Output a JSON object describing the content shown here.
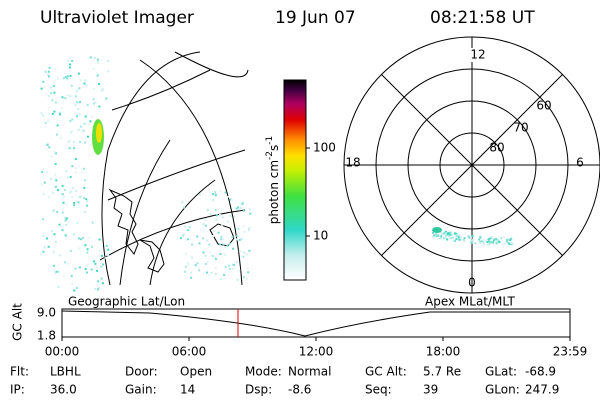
{
  "header": {
    "title": "Ultraviolet Imager",
    "date": "19 Jun 07",
    "time": "08:21:58 UT"
  },
  "colorbar": {
    "label": [
      "photon cm",
      "-2",
      "s",
      "-1"
    ],
    "ticks": [
      "100",
      "10"
    ]
  },
  "polar": {
    "mlt": [
      "12",
      "18",
      "6",
      "0"
    ],
    "mlat": [
      "60",
      "70",
      "80"
    ]
  },
  "timeline": {
    "left_title": "Geographic Lat/Lon",
    "right_title": "Apex MLat/MLT",
    "axis_label": "GC Alt",
    "yticks": [
      "9.0",
      "1.8"
    ],
    "xticks": [
      "00:00",
      "06:00",
      "12:00",
      "18:00",
      "23:59"
    ]
  },
  "footer": [
    {
      "label": "Flt:",
      "value": "LBHL"
    },
    {
      "label": "IP:",
      "value": "36.0"
    },
    {
      "label": "Door:",
      "value": "Open"
    },
    {
      "label": "Gain:",
      "value": "14"
    },
    {
      "label": "Mode:",
      "value": "Normal"
    },
    {
      "label": "Dsp:",
      "value": "-8.6"
    },
    {
      "label": "GC Alt:",
      "value": "5.7 Re"
    },
    {
      "label": "Seq:",
      "value": "39"
    },
    {
      "label": "GLat:",
      "value": "-68.9"
    },
    {
      "label": "GLon:",
      "value": "247.9"
    }
  ]
}
